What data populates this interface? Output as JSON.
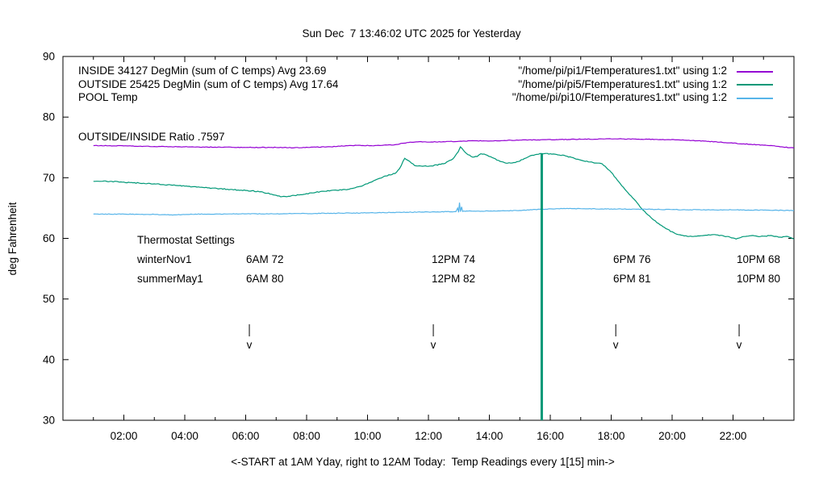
{
  "title": "Sun Dec  7 13:46:02 UTC 2025 for Yesterday",
  "ylabel": "deg Fahrenheit",
  "xlabel": "<-START at 1AM Yday, right to 12AM Today:  Temp Readings every 1[15] min->",
  "ratio_label": "OUTSIDE/INSIDE Ratio .7597",
  "legend": {
    "entries": [
      {
        "label": "INSIDE 34127 DegMin (sum of C temps) Avg 23.69",
        "file": "\"/home/pi/pi1/Ftemperatures1.txt\" using 1:2",
        "color": "#9400d3"
      },
      {
        "label": "OUTSIDE 25425 DegMin (sum of C temps) Avg 17.64",
        "file": "\"/home/pi/pi5/Ftemperatures1.txt\" using 1:2",
        "color": "#009877"
      },
      {
        "label": "POOL Temp",
        "file": "\"/home/pi/pi10/Ftemperatures1.txt\" using 1:2",
        "color": "#56b4e9"
      }
    ]
  },
  "thermostat": {
    "heading": "Thermostat Settings",
    "rows": [
      {
        "name": "winterNov1",
        "settings": [
          "6AM 72",
          "12PM 74",
          "6PM 76",
          "10PM 68"
        ]
      },
      {
        "name": "summerMay1",
        "settings": [
          "6AM 80",
          "12PM 82",
          "6PM 81",
          "10PM 80"
        ]
      }
    ]
  },
  "chart_data": {
    "type": "line",
    "title": "Sun Dec  7 13:46:02 UTC 2025 for Yesterday",
    "xlabel": "<-START at 1AM Yday, right to 12AM Today:  Temp Readings every 1[15] min->",
    "ylabel": "deg Fahrenheit",
    "xlim": [
      0,
      24
    ],
    "ylim": [
      30,
      90
    ],
    "grid": false,
    "legend_position": "top-inside",
    "xticks_major": [
      {
        "t": 2,
        "label": "02:00"
      },
      {
        "t": 4,
        "label": "04:00"
      },
      {
        "t": 6,
        "label": "06:00"
      },
      {
        "t": 8,
        "label": "08:00"
      },
      {
        "t": 10,
        "label": "10:00"
      },
      {
        "t": 12,
        "label": "12:00"
      },
      {
        "t": 14,
        "label": "14:00"
      },
      {
        "t": 16,
        "label": "16:00"
      },
      {
        "t": 18,
        "label": "18:00"
      },
      {
        "t": 20,
        "label": "20:00"
      },
      {
        "t": 22,
        "label": "22:00"
      }
    ],
    "yticks": [
      30,
      40,
      50,
      60,
      70,
      80,
      90
    ],
    "series": [
      {
        "name": "INSIDE",
        "color": "#9400d3",
        "noise": 0.05,
        "points": [
          [
            1,
            75.3
          ],
          [
            2,
            75.25
          ],
          [
            3,
            75.15
          ],
          [
            4,
            75.1
          ],
          [
            5,
            75.05
          ],
          [
            6,
            75.0
          ],
          [
            7,
            75.0
          ],
          [
            7.6,
            74.95
          ],
          [
            8.2,
            75.05
          ],
          [
            8.8,
            75.1
          ],
          [
            9.3,
            75.3
          ],
          [
            9.7,
            75.35
          ],
          [
            10.1,
            75.3
          ],
          [
            10.5,
            75.35
          ],
          [
            10.9,
            75.45
          ],
          [
            11.3,
            75.8
          ],
          [
            11.7,
            75.95
          ],
          [
            12.1,
            75.9
          ],
          [
            12.5,
            75.95
          ],
          [
            13,
            76.0
          ],
          [
            13.6,
            76.1
          ],
          [
            14,
            76.05
          ],
          [
            14.5,
            76.15
          ],
          [
            15,
            76.2
          ],
          [
            15.6,
            76.25
          ],
          [
            16.2,
            76.3
          ],
          [
            17,
            76.35
          ],
          [
            17.8,
            76.4
          ],
          [
            18.4,
            76.4
          ],
          [
            19,
            76.35
          ],
          [
            19.6,
            76.3
          ],
          [
            20.2,
            76.25
          ],
          [
            20.8,
            76.1
          ],
          [
            21.4,
            75.95
          ],
          [
            22,
            75.7
          ],
          [
            22.6,
            75.5
          ],
          [
            23.2,
            75.3
          ],
          [
            23.6,
            75.1
          ],
          [
            24,
            74.9
          ]
        ]
      },
      {
        "name": "OUTSIDE",
        "color": "#009877",
        "noise": 0.07,
        "points": [
          [
            1,
            69.4
          ],
          [
            1.6,
            69.4
          ],
          [
            2.2,
            69.2
          ],
          [
            3,
            69.0
          ],
          [
            3.8,
            68.7
          ],
          [
            4.6,
            68.4
          ],
          [
            5.4,
            68.1
          ],
          [
            6,
            67.9
          ],
          [
            6.5,
            67.7
          ],
          [
            7,
            67.1
          ],
          [
            7.15,
            66.85
          ],
          [
            7.4,
            66.95
          ],
          [
            7.8,
            67.2
          ],
          [
            8.3,
            67.6
          ],
          [
            8.8,
            67.9
          ],
          [
            9.4,
            68.1
          ],
          [
            9.8,
            68.6
          ],
          [
            10.2,
            69.5
          ],
          [
            10.6,
            70.3
          ],
          [
            10.9,
            70.7
          ],
          [
            11.05,
            71.5
          ],
          [
            11.22,
            73.2
          ],
          [
            11.38,
            72.7
          ],
          [
            11.55,
            72.0
          ],
          [
            11.8,
            71.9
          ],
          [
            12.1,
            71.95
          ],
          [
            12.5,
            72.3
          ],
          [
            12.8,
            73.1
          ],
          [
            12.98,
            74.3
          ],
          [
            13.05,
            75.1
          ],
          [
            13.25,
            74.0
          ],
          [
            13.45,
            73.4
          ],
          [
            13.6,
            73.5
          ],
          [
            13.72,
            73.95
          ],
          [
            13.88,
            73.8
          ],
          [
            14.1,
            73.3
          ],
          [
            14.35,
            72.7
          ],
          [
            14.6,
            72.4
          ],
          [
            14.85,
            72.5
          ],
          [
            15.1,
            73.0
          ],
          [
            15.4,
            73.7
          ],
          [
            15.72,
            74.0
          ],
          [
            16,
            73.95
          ],
          [
            16.5,
            73.6
          ],
          [
            17,
            72.9
          ],
          [
            17.3,
            72.6
          ],
          [
            17.7,
            72.3
          ],
          [
            18,
            70.9
          ],
          [
            18.2,
            69.6
          ],
          [
            18.5,
            67.8
          ],
          [
            18.8,
            66.2
          ],
          [
            19,
            64.9
          ],
          [
            19.2,
            63.9
          ],
          [
            19.5,
            62.6
          ],
          [
            19.8,
            61.6
          ],
          [
            20.1,
            60.8
          ],
          [
            20.4,
            60.4
          ],
          [
            20.7,
            60.3
          ],
          [
            21,
            60.45
          ],
          [
            21.3,
            60.6
          ],
          [
            21.6,
            60.5
          ],
          [
            21.9,
            60.2
          ],
          [
            22.1,
            59.9
          ],
          [
            22.35,
            60.3
          ],
          [
            22.6,
            60.45
          ],
          [
            22.9,
            60.3
          ],
          [
            23.2,
            60.45
          ],
          [
            23.5,
            60.2
          ],
          [
            23.8,
            60.3
          ],
          [
            24,
            59.9
          ]
        ]
      },
      {
        "name": "POOL",
        "color": "#56b4e9",
        "noise": 0.05,
        "points": [
          [
            1,
            64.0
          ],
          [
            2,
            64.0
          ],
          [
            3,
            63.95
          ],
          [
            3.6,
            63.85
          ],
          [
            4.2,
            64.0
          ],
          [
            5,
            64.0
          ],
          [
            6,
            64.05
          ],
          [
            7,
            64.05
          ],
          [
            8,
            64.1
          ],
          [
            9,
            64.15
          ],
          [
            10,
            64.2
          ],
          [
            11,
            64.3
          ],
          [
            12,
            64.35
          ],
          [
            12.6,
            64.4
          ],
          [
            12.9,
            64.4
          ],
          [
            12.96,
            65.0
          ],
          [
            12.99,
            64.3
          ],
          [
            13.02,
            65.9
          ],
          [
            13.05,
            64.4
          ],
          [
            13.09,
            65.2
          ],
          [
            13.12,
            64.45
          ],
          [
            13.3,
            64.5
          ],
          [
            14,
            64.5
          ],
          [
            15,
            64.6
          ],
          [
            15.7,
            64.8
          ],
          [
            16.2,
            64.9
          ],
          [
            17,
            64.9
          ],
          [
            18,
            64.85
          ],
          [
            19,
            64.8
          ],
          [
            20,
            64.75
          ],
          [
            21,
            64.7
          ],
          [
            22,
            64.7
          ],
          [
            23,
            64.65
          ],
          [
            24,
            64.6
          ]
        ]
      }
    ],
    "event_line": {
      "x": 15.72,
      "y_top": 74.0,
      "y_bottom": 30,
      "color": "#009877"
    },
    "arrow_markers": {
      "glyph": "v",
      "x_hours": [
        6.12,
        12.16,
        18.15,
        22.2
      ],
      "y_deg": 44
    }
  }
}
